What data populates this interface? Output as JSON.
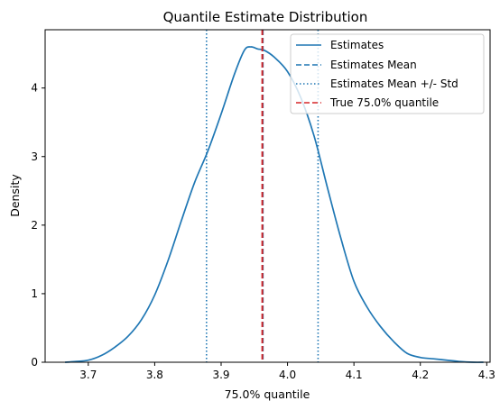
{
  "chart_data": {
    "type": "line",
    "title": "Quantile Estimate Distribution",
    "xlabel": "75.0% quantile",
    "ylabel": "Density",
    "xlim": [
      3.635,
      4.305
    ],
    "ylim": [
      0,
      4.85
    ],
    "x_ticks": [
      "3.7",
      "3.8",
      "3.9",
      "4.0",
      "4.1",
      "4.2",
      "4.3"
    ],
    "y_ticks": [
      "0",
      "1",
      "2",
      "3",
      "4"
    ],
    "grid": false,
    "legend_position": "top-right",
    "series": [
      {
        "name": "Estimates",
        "style": "solid",
        "color": "#1f77b4",
        "x": [
          3.665,
          3.68,
          3.7,
          3.72,
          3.74,
          3.76,
          3.78,
          3.8,
          3.82,
          3.84,
          3.86,
          3.88,
          3.9,
          3.92,
          3.935,
          3.945,
          3.955,
          3.965,
          3.98,
          4.0,
          4.02,
          4.04,
          4.06,
          4.08,
          4.1,
          4.12,
          4.14,
          4.16,
          4.18,
          4.2,
          4.22,
          4.24,
          4.26,
          4.28,
          4.295
        ],
        "y": [
          0.0,
          0.01,
          0.03,
          0.1,
          0.22,
          0.38,
          0.62,
          0.98,
          1.48,
          2.06,
          2.62,
          3.08,
          3.62,
          4.2,
          4.55,
          4.6,
          4.57,
          4.55,
          4.45,
          4.24,
          3.86,
          3.3,
          2.55,
          1.82,
          1.18,
          0.8,
          0.52,
          0.3,
          0.13,
          0.07,
          0.05,
          0.03,
          0.01,
          0.0,
          0.0
        ]
      }
    ],
    "reference_lines": [
      {
        "name": "Estimates Mean",
        "style": "dashed",
        "color": "#1f77b4",
        "x": 3.963
      },
      {
        "name": "Estimates Mean +/- Std",
        "style": "dotted",
        "color": "#1f77b4",
        "x": [
          3.878,
          4.046
        ]
      },
      {
        "name": "True 75.0% quantile",
        "style": "dashed",
        "color": "#d62728",
        "x": 3.962
      }
    ]
  }
}
